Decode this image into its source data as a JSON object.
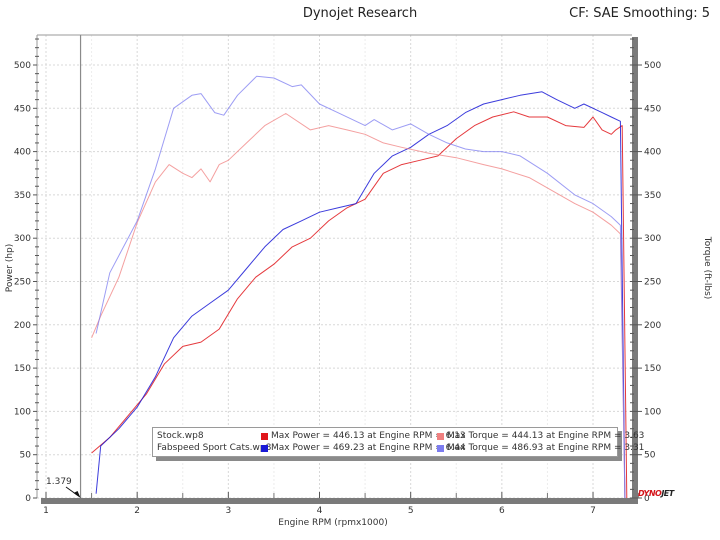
{
  "header": {
    "title": "Dynojet Research",
    "correction": "CF: SAE Smoothing: 5"
  },
  "cursor": {
    "label": "1.379",
    "rpm": 1.379
  },
  "logo": {
    "part1": "DYNO",
    "part2": "JET"
  },
  "legend": {
    "runs": [
      {
        "name": "Stock.wp8",
        "power_color": "#e0161b",
        "power_text": "Max Power = 446.13 at Engine RPM = 6.13",
        "torque_color": "#f08080",
        "torque_text": "Max Torque = 444.13 at Engine RPM = 3.63"
      },
      {
        "name": "Fabspeed Sport Cats.wp8",
        "power_color": "#1a1ad6",
        "power_text": "Max Power = 469.23 at Engine RPM = 6.44",
        "torque_color": "#7c7cf0",
        "torque_text": "Max Torque = 486.93 at Engine RPM = 3.31"
      }
    ]
  },
  "chart_data": {
    "type": "line",
    "title": "Dynojet Research",
    "subtitle": "CF: SAE Smoothing: 5",
    "xlabel": "Engine RPM (rpmx1000)",
    "ylabel": "Power (hp)",
    "y2label": "Torque (ft-lbs)",
    "xlim": [
      0.9,
      7.65
    ],
    "ylim": [
      0,
      540
    ],
    "y2lim": [
      0,
      540
    ],
    "xticks": [
      1,
      2,
      3,
      4,
      5,
      6,
      7
    ],
    "yticks": [
      0,
      50,
      100,
      150,
      200,
      250,
      300,
      350,
      400,
      450,
      500
    ],
    "y2ticks": [
      0,
      50,
      100,
      150,
      200,
      250,
      300,
      350,
      400,
      450,
      500
    ],
    "grid": true,
    "legend_position": "bottom-inside",
    "annotations": [
      {
        "text": "1.379",
        "x": 1.379,
        "y": 0,
        "type": "cursor-line"
      }
    ],
    "series": [
      {
        "name": "Stock.wp8 - Power",
        "axis": "left",
        "color": "#e0161b",
        "x": [
          1.5,
          1.7,
          1.9,
          2.1,
          2.3,
          2.5,
          2.7,
          2.9,
          3.1,
          3.3,
          3.5,
          3.7,
          3.9,
          4.1,
          4.3,
          4.5,
          4.7,
          4.9,
          5.1,
          5.3,
          5.5,
          5.7,
          5.9,
          6.13,
          6.3,
          6.5,
          6.7,
          6.9,
          7.0,
          7.1,
          7.2,
          7.25,
          7.32,
          7.37
        ],
        "values": [
          52,
          70,
          95,
          120,
          155,
          175,
          180,
          195,
          230,
          255,
          270,
          290,
          300,
          320,
          335,
          345,
          375,
          385,
          390,
          395,
          415,
          430,
          440,
          446,
          440,
          440,
          430,
          428,
          440,
          425,
          420,
          425,
          430,
          0
        ]
      },
      {
        "name": "Fabspeed Sport Cats.wp8 - Power",
        "axis": "left",
        "color": "#1a1ad6",
        "x": [
          1.55,
          1.6,
          1.8,
          2.0,
          2.2,
          2.4,
          2.6,
          2.8,
          3.0,
          3.2,
          3.4,
          3.6,
          3.8,
          4.0,
          4.2,
          4.4,
          4.6,
          4.8,
          5.0,
          5.2,
          5.4,
          5.6,
          5.8,
          6.0,
          6.2,
          6.44,
          6.6,
          6.8,
          6.9,
          7.1,
          7.2,
          7.3,
          7.35
        ],
        "values": [
          5,
          60,
          80,
          105,
          140,
          185,
          210,
          225,
          240,
          265,
          290,
          310,
          320,
          330,
          335,
          340,
          375,
          395,
          405,
          420,
          430,
          445,
          455,
          460,
          465,
          469,
          460,
          450,
          455,
          445,
          440,
          435,
          0
        ]
      },
      {
        "name": "Stock.wp8 - Torque",
        "axis": "right",
        "color": "#f08080",
        "x": [
          1.5,
          1.6,
          1.8,
          2.0,
          2.2,
          2.35,
          2.5,
          2.6,
          2.7,
          2.8,
          2.9,
          3.0,
          3.2,
          3.4,
          3.63,
          3.9,
          4.1,
          4.3,
          4.5,
          4.7,
          4.9,
          5.2,
          5.5,
          5.8,
          6.0,
          6.3,
          6.6,
          6.8,
          7.0,
          7.2,
          7.3,
          7.35
        ],
        "values": [
          185,
          210,
          255,
          318,
          365,
          385,
          375,
          370,
          380,
          365,
          385,
          390,
          410,
          430,
          444,
          425,
          430,
          425,
          420,
          410,
          405,
          398,
          393,
          385,
          380,
          370,
          352,
          340,
          330,
          315,
          305,
          0
        ]
      },
      {
        "name": "Fabspeed Sport Cats.wp8 - Torque",
        "axis": "right",
        "color": "#7c7cf0",
        "x": [
          1.55,
          1.7,
          2.0,
          2.2,
          2.4,
          2.6,
          2.7,
          2.85,
          2.95,
          3.1,
          3.31,
          3.5,
          3.7,
          3.8,
          4.0,
          4.2,
          4.5,
          4.6,
          4.8,
          5.0,
          5.2,
          5.4,
          5.6,
          5.8,
          6.0,
          6.2,
          6.5,
          6.8,
          7.0,
          7.2,
          7.3,
          7.35
        ],
        "values": [
          190,
          260,
          320,
          380,
          450,
          465,
          467,
          445,
          442,
          465,
          487,
          485,
          475,
          477,
          455,
          445,
          430,
          437,
          425,
          432,
          420,
          410,
          403,
          400,
          400,
          395,
          375,
          350,
          340,
          325,
          315,
          0
        ]
      }
    ]
  }
}
